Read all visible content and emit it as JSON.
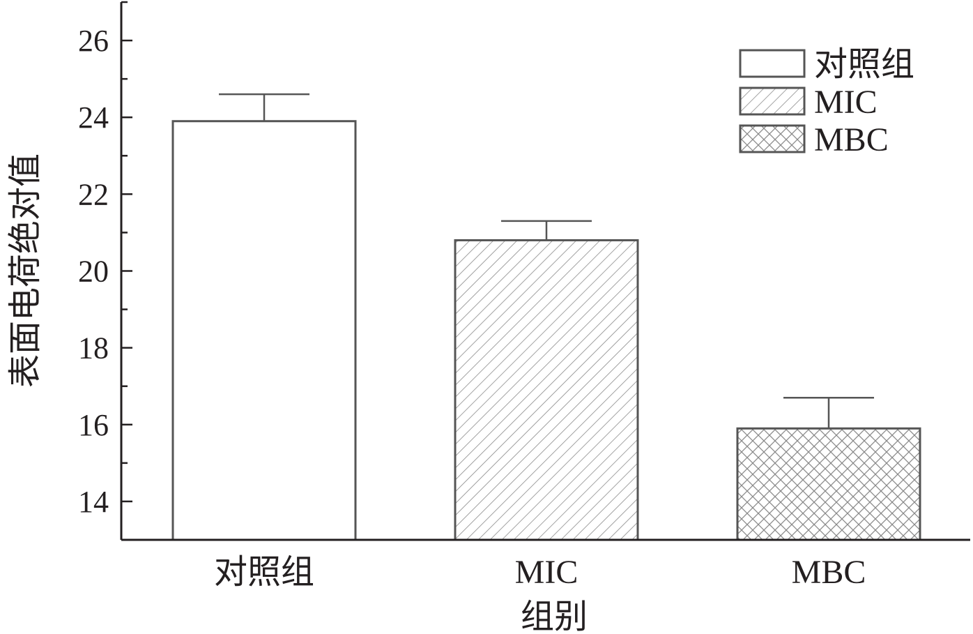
{
  "chart_data": {
    "type": "bar",
    "title": "",
    "xlabel": "组别",
    "ylabel": "表面电荷绝对值",
    "categories": [
      "对照组",
      "MIC",
      "MBC"
    ],
    "values": [
      23.9,
      20.8,
      15.9
    ],
    "error_bars": [
      0.7,
      0.5,
      0.8
    ],
    "ylim": [
      13,
      27
    ],
    "yticks": [
      14,
      16,
      18,
      20,
      22,
      24,
      26
    ],
    "grid": false,
    "legend": {
      "position": "top-right",
      "entries": [
        "对照组",
        "MIC",
        "MBC"
      ]
    },
    "patterns": [
      "none",
      "diagonal",
      "crosshatch"
    ],
    "colors": {
      "axis": "#231f20",
      "bar_outline": "#555555",
      "hatch": "#8a8a8a"
    }
  }
}
